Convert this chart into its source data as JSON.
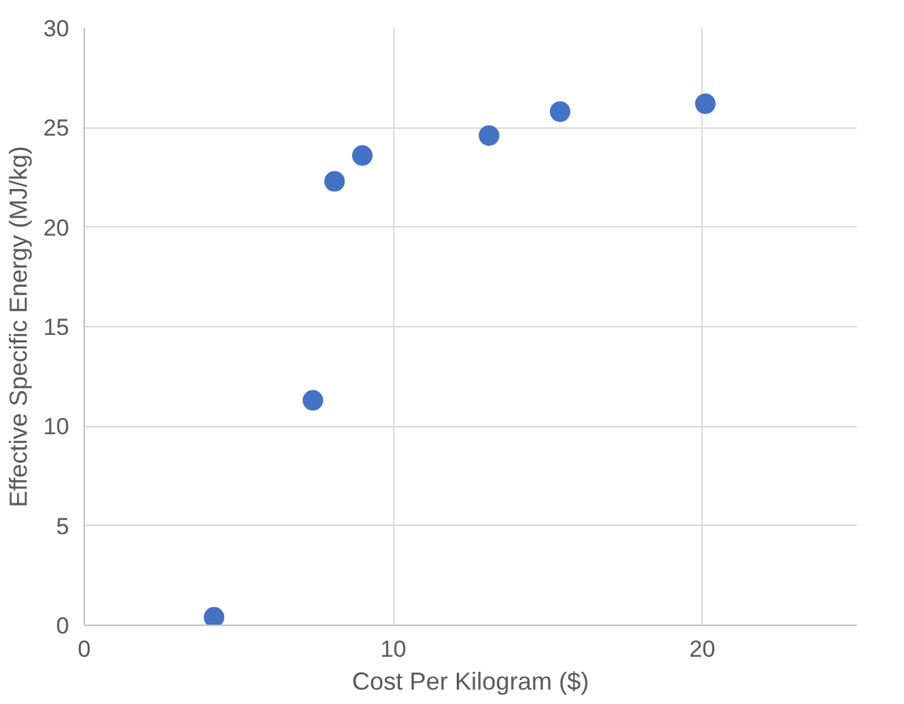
{
  "chart_data": {
    "type": "scatter",
    "xlabel": "Cost Per Kilogram ($)",
    "ylabel": "Effective Specific Energy (MJ/kg)",
    "x": [
      4.2,
      7.4,
      8.1,
      9.0,
      13.1,
      15.4,
      20.1
    ],
    "series": [
      {
        "color": "#4472c4",
        "values": [
          0.4,
          11.3,
          22.3,
          23.6,
          24.6,
          25.8,
          26.2
        ]
      }
    ],
    "xlim": [
      0,
      25
    ],
    "xticks": [
      0,
      10,
      20
    ],
    "ylim": [
      0,
      30
    ],
    "yticks": [
      0,
      5,
      10,
      15,
      20,
      25,
      30
    ],
    "grid": true,
    "marker": "circle"
  }
}
